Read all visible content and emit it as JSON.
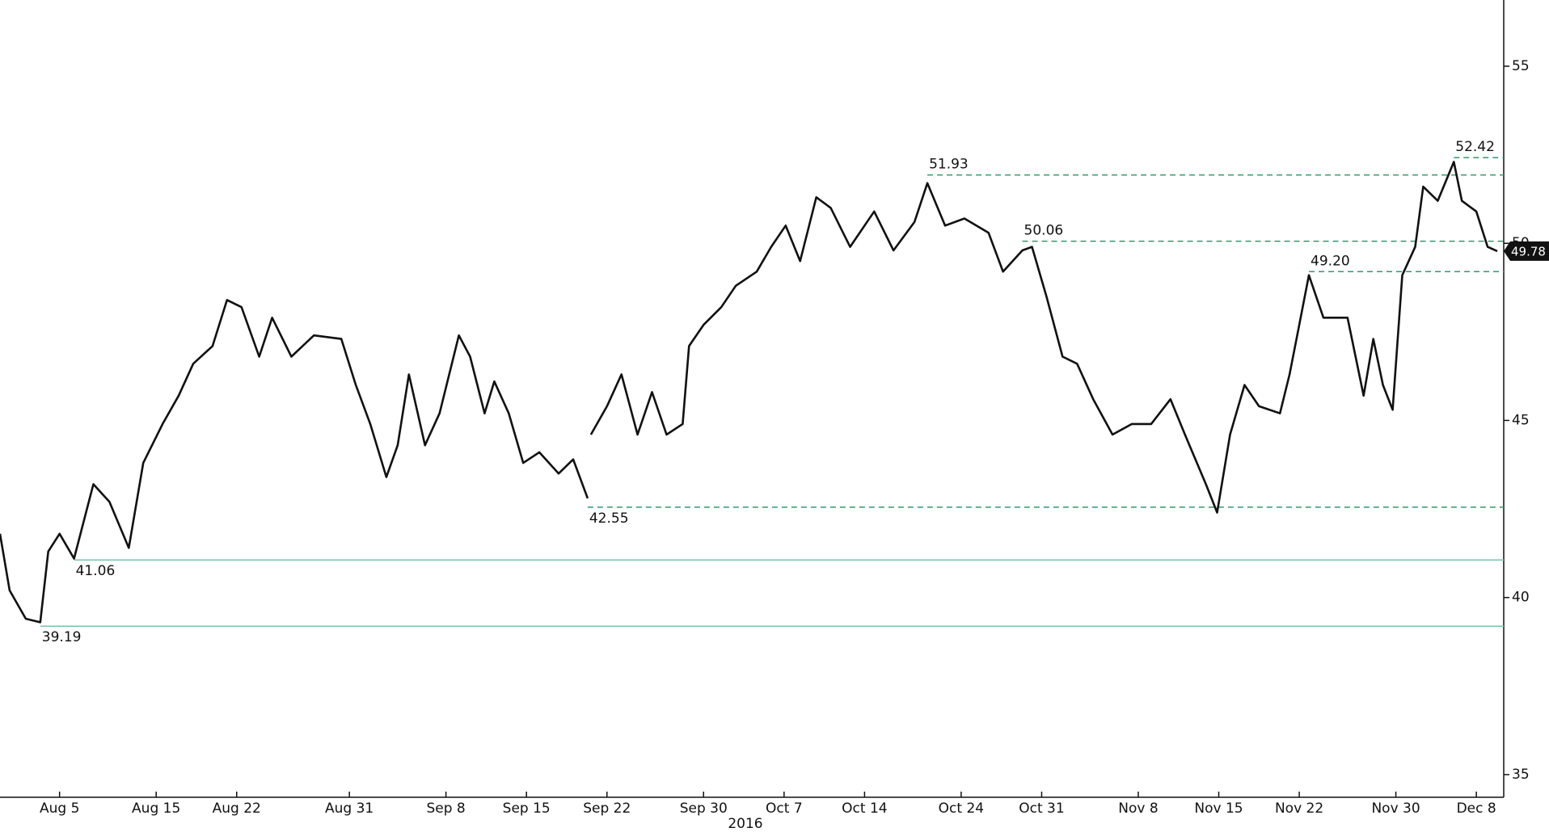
{
  "chart_data": {
    "type": "line",
    "xlabel": "2016",
    "x": [
      -3.7,
      -3.1,
      -2.1,
      -1.2,
      -0.7,
      0,
      0.9,
      2.1,
      3.1,
      4.3,
      5.2,
      6.4,
      7.4,
      8.3,
      9.5,
      10.4,
      11.3,
      12.4,
      13.2,
      14.4,
      15.8,
      17.5,
      18.4,
      19.3,
      20.3,
      21.0,
      21.7,
      22.7,
      23.6,
      24.8,
      25.5,
      26.4,
      27.0,
      27.9,
      28.8,
      29.8,
      31.0,
      31.9,
      32.8,
      null,
      33.0,
      34.0,
      34.9,
      35.9,
      36.8,
      37.7,
      38.7,
      39.1,
      40.0,
      41.1,
      42.0,
      43.3,
      44.2,
      45.1,
      46.0,
      47.0,
      47.9,
      49.1,
      50.6,
      51.8,
      53.1,
      53.9,
      55.0,
      56.2,
      57.7,
      58.6,
      59.8,
      60.4,
      61.3,
      62.3,
      63.2,
      64.2,
      65.4,
      66.6,
      67.8,
      69.0,
      69.9,
      71.2,
      71.9,
      72.7,
      73.6,
      74.5,
      75.8,
      76.4,
      77.0,
      77.6,
      78.5,
      80.0,
      81.0,
      81.6,
      82.2,
      82.8,
      83.4,
      84.2,
      84.7,
      85.6,
      86.6,
      87.1,
      88.0,
      88.7,
      89.3
    ],
    "series": [
      {
        "color": "#111111",
        "values": [
          41.8,
          40.2,
          39.4,
          39.3,
          41.3,
          41.8,
          41.1,
          43.2,
          42.7,
          41.4,
          43.8,
          44.9,
          45.7,
          46.6,
          47.1,
          48.4,
          48.2,
          46.8,
          47.9,
          46.8,
          47.4,
          47.3,
          46.0,
          44.9,
          43.4,
          44.3,
          46.3,
          44.3,
          45.2,
          47.4,
          46.8,
          45.2,
          46.1,
          45.2,
          43.8,
          44.1,
          43.5,
          43.9,
          42.8,
          null,
          44.6,
          45.4,
          46.3,
          44.6,
          45.8,
          44.6,
          44.9,
          47.1,
          47.7,
          48.2,
          48.8,
          49.2,
          49.9,
          50.5,
          49.5,
          51.3,
          51.0,
          49.9,
          50.9,
          49.8,
          50.6,
          51.7,
          50.5,
          50.7,
          50.3,
          49.2,
          49.8,
          49.9,
          48.5,
          46.8,
          46.6,
          45.6,
          44.6,
          44.9,
          44.9,
          45.6,
          44.6,
          43.2,
          42.4,
          44.6,
          46.0,
          45.4,
          45.2,
          46.3,
          47.7,
          49.1,
          47.9,
          47.9,
          45.7,
          47.3,
          46.0,
          45.3,
          49.1,
          49.9,
          51.6,
          51.2,
          52.3,
          51.2,
          50.9,
          49.9,
          49.78
        ]
      }
    ],
    "levels": [
      {
        "value": 52.42,
        "x": 86.6,
        "style": "dashed",
        "color": "#2f9a6e"
      },
      {
        "value": 51.93,
        "x": 53.9,
        "style": "dashed",
        "color": "#2f9a6e"
      },
      {
        "value": 50.06,
        "x": 59.8,
        "style": "dashed",
        "color": "#2f9a6e"
      },
      {
        "value": 49.2,
        "label": "49.20",
        "x": 77.6,
        "style": "dashed",
        "color": "#2f9a6e"
      },
      {
        "value": 42.55,
        "x": 32.8,
        "style": "dashed",
        "color": "#2f9a6e"
      },
      {
        "value": 41.06,
        "x": 0.9,
        "style": "solid",
        "color": "#7cc2ab"
      },
      {
        "value": 39.19,
        "x": -1.2,
        "style": "solid",
        "color": "#7cc2ab"
      }
    ],
    "xlim": [
      -3.7,
      89.7
    ],
    "xticks": [
      {
        "value": 0,
        "label": "Aug 5"
      },
      {
        "value": 6,
        "label": "Aug 15"
      },
      {
        "value": 11,
        "label": "Aug 22"
      },
      {
        "value": 18,
        "label": "Aug 31"
      },
      {
        "value": 24,
        "label": "Sep 8"
      },
      {
        "value": 29,
        "label": "Sep 15"
      },
      {
        "value": 34,
        "label": "Sep 22"
      },
      {
        "value": 40,
        "label": "Sep 30"
      },
      {
        "value": 45,
        "label": "Oct 7"
      },
      {
        "value": 50,
        "label": "Oct 14"
      },
      {
        "value": 56,
        "label": "Oct 24"
      },
      {
        "value": 61,
        "label": "Oct 31"
      },
      {
        "value": 67,
        "label": "Nov 8"
      },
      {
        "value": 72,
        "label": "Nov 15"
      },
      {
        "value": 77,
        "label": "Nov 22"
      },
      {
        "value": 83,
        "label": "Nov 30"
      },
      {
        "value": 88,
        "label": "Dec 8"
      }
    ],
    "ylim": [
      34.36,
      56.87
    ],
    "yticks": [
      35,
      40,
      45,
      50,
      55
    ],
    "grid": false
  }
}
